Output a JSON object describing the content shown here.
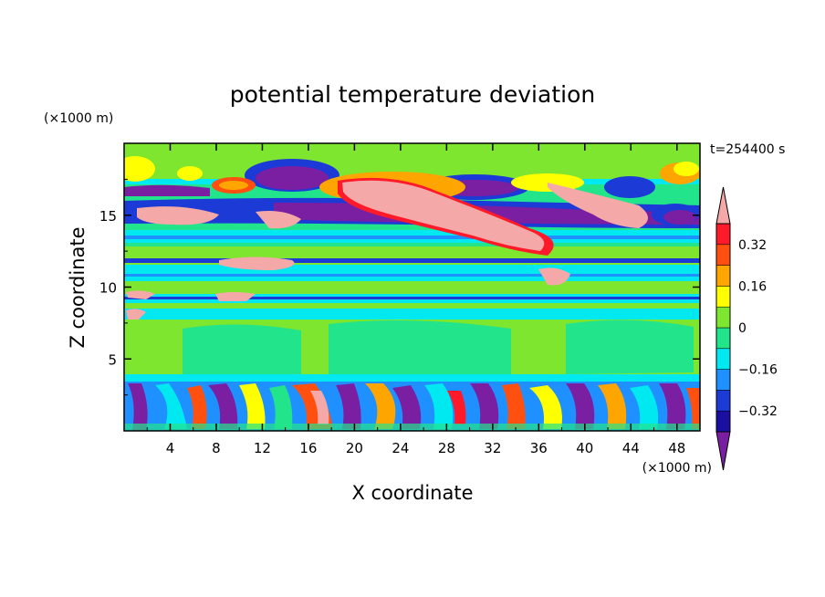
{
  "chart_data": {
    "type": "heatmap",
    "title": "potential temperature deviation",
    "xlabel": "X coordinate",
    "ylabel": "Z coordinate",
    "x_unit": "(×1000 m)",
    "y_unit": "(×1000 m)",
    "time_label": "t=254400 s",
    "xlim": [
      0,
      50
    ],
    "ylim": [
      0,
      20
    ],
    "x_ticks": [
      "4",
      "8",
      "12",
      "16",
      "20",
      "24",
      "28",
      "32",
      "36",
      "40",
      "44",
      "48"
    ],
    "y_ticks": [
      "5",
      "10",
      "15"
    ],
    "colorbar": {
      "levels": [
        -0.4,
        -0.32,
        -0.24,
        -0.16,
        -0.08,
        0,
        0.08,
        0.16,
        0.24,
        0.32,
        0.4
      ],
      "labels": [
        "0.32",
        "0.16",
        "0",
        "−0.16",
        "−0.32"
      ],
      "colors": [
        "#7a1fa2",
        "#1a0fa0",
        "#1c3ad6",
        "#1e90ff",
        "#00e8f0",
        "#22e48a",
        "#7ee62e",
        "#ffff00",
        "#ffa500",
        "#ff5010",
        "#ff1a2a",
        "#f5a8a8"
      ]
    },
    "field_description_layers": [
      {
        "z_range": [
          0,
          3.5
        ],
        "pattern": "turbulent mixed positive and negative deviations"
      },
      {
        "z_range": [
          3.5,
          9
        ],
        "pattern": "near zero (green)"
      },
      {
        "z_range": [
          9,
          14
        ],
        "pattern": "banded small negative/positive deviations"
      },
      {
        "z_range": [
          14,
          18
        ],
        "pattern": "strong positive (pink) band sloping with strong negative (purple) band above"
      },
      {
        "z_range": [
          18,
          20
        ],
        "pattern": "near zero with local positive patches"
      }
    ]
  }
}
